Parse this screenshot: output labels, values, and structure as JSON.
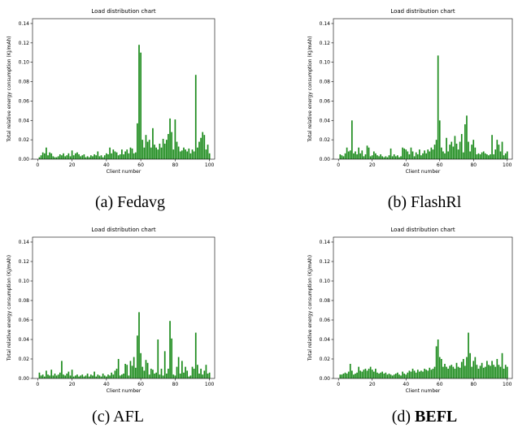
{
  "colors": {
    "bar": "#1a8a1a",
    "axis": "#000000"
  },
  "captions": [
    {
      "label": "(a)",
      "name": "Fedavg",
      "bold": false
    },
    {
      "label": "(b)",
      "name": "FlashRl",
      "bold": false
    },
    {
      "label": "(c)",
      "name": "AFL",
      "bold": false
    },
    {
      "label": "(d)",
      "name": "BEFL",
      "bold": true
    }
  ],
  "chart_data": [
    {
      "type": "bar",
      "title": "Load distribution chart",
      "xlabel": "Client number",
      "ylabel": "Total relative energy consumption (KJ/mAh)",
      "xlim": [
        -3,
        103
      ],
      "ylim": [
        0,
        0.145
      ],
      "xticks": [
        0,
        20,
        40,
        60,
        80,
        100
      ],
      "yticks": [
        0.0,
        0.02,
        0.04,
        0.06,
        0.08,
        0.1,
        0.12,
        0.14
      ],
      "x_start": 1,
      "values": [
        0.002,
        0.004,
        0.007,
        0.006,
        0.012,
        0.004,
        0.007,
        0.006,
        0.003,
        0.002,
        0.002,
        0.003,
        0.005,
        0.004,
        0.006,
        0.003,
        0.004,
        0.006,
        0.003,
        0.009,
        0.004,
        0.006,
        0.007,
        0.005,
        0.003,
        0.004,
        0.005,
        0.002,
        0.003,
        0.002,
        0.004,
        0.003,
        0.005,
        0.004,
        0.008,
        0.003,
        0.004,
        0.002,
        0.004,
        0.006,
        0.005,
        0.012,
        0.006,
        0.01,
        0.008,
        0.007,
        0.004,
        0.005,
        0.01,
        0.005,
        0.008,
        0.01,
        0.006,
        0.012,
        0.011,
        0.006,
        0.007,
        0.037,
        0.118,
        0.11,
        0.02,
        0.012,
        0.025,
        0.018,
        0.02,
        0.012,
        0.032,
        0.015,
        0.012,
        0.01,
        0.016,
        0.012,
        0.021,
        0.016,
        0.02,
        0.026,
        0.042,
        0.028,
        0.01,
        0.041,
        0.018,
        0.013,
        0.008,
        0.009,
        0.012,
        0.01,
        0.008,
        0.011,
        0.006,
        0.01,
        0.008,
        0.087,
        0.012,
        0.018,
        0.022,
        0.028,
        0.025,
        0.01,
        0.015,
        0.006
      ]
    },
    {
      "type": "bar",
      "title": "Load distribution chart",
      "xlabel": "Client number",
      "ylabel": "Total relative energy consumption (KJ/mAh)",
      "xlim": [
        -3,
        103
      ],
      "ylim": [
        0,
        0.145
      ],
      "xticks": [
        0,
        20,
        40,
        60,
        80,
        100
      ],
      "yticks": [
        0.0,
        0.02,
        0.04,
        0.06,
        0.08,
        0.1,
        0.12,
        0.14
      ],
      "x_start": 1,
      "values": [
        0.005,
        0.004,
        0.003,
        0.006,
        0.012,
        0.008,
        0.009,
        0.04,
        0.006,
        0.008,
        0.005,
        0.012,
        0.006,
        0.009,
        0.003,
        0.005,
        0.014,
        0.012,
        0.003,
        0.004,
        0.008,
        0.006,
        0.004,
        0.003,
        0.005,
        0.003,
        0.002,
        0.003,
        0.002,
        0.004,
        0.011,
        0.003,
        0.005,
        0.003,
        0.004,
        0.002,
        0.003,
        0.012,
        0.011,
        0.01,
        0.008,
        0.005,
        0.012,
        0.008,
        0.003,
        0.007,
        0.005,
        0.01,
        0.004,
        0.006,
        0.009,
        0.006,
        0.01,
        0.008,
        0.012,
        0.01,
        0.015,
        0.02,
        0.107,
        0.04,
        0.012,
        0.008,
        0.006,
        0.022,
        0.008,
        0.015,
        0.018,
        0.013,
        0.024,
        0.016,
        0.01,
        0.018,
        0.026,
        0.007,
        0.036,
        0.045,
        0.018,
        0.008,
        0.015,
        0.02,
        0.012,
        0.005,
        0.006,
        0.005,
        0.007,
        0.008,
        0.006,
        0.005,
        0.004,
        0.005,
        0.025,
        0.005,
        0.01,
        0.02,
        0.015,
        0.008,
        0.018,
        0.004,
        0.006,
        0.008
      ]
    },
    {
      "type": "bar",
      "title": "Load distribution chart",
      "xlabel": "Client number",
      "ylabel": "Total relative energy consumption (KJ/mAh)",
      "xlim": [
        -3,
        103
      ],
      "ylim": [
        0,
        0.145
      ],
      "xticks": [
        0,
        20,
        40,
        60,
        80,
        100
      ],
      "yticks": [
        0.0,
        0.02,
        0.04,
        0.06,
        0.08,
        0.1,
        0.12,
        0.14
      ],
      "x_start": 1,
      "values": [
        0.006,
        0.003,
        0.004,
        0.002,
        0.008,
        0.004,
        0.003,
        0.009,
        0.003,
        0.005,
        0.003,
        0.004,
        0.006,
        0.018,
        0.004,
        0.003,
        0.005,
        0.007,
        0.003,
        0.009,
        0.002,
        0.003,
        0.004,
        0.002,
        0.003,
        0.004,
        0.002,
        0.003,
        0.005,
        0.002,
        0.004,
        0.003,
        0.007,
        0.002,
        0.004,
        0.003,
        0.002,
        0.005,
        0.003,
        0.002,
        0.004,
        0.003,
        0.006,
        0.004,
        0.008,
        0.01,
        0.02,
        0.003,
        0.004,
        0.005,
        0.015,
        0.014,
        0.003,
        0.018,
        0.013,
        0.022,
        0.011,
        0.044,
        0.068,
        0.026,
        0.012,
        0.008,
        0.019,
        0.016,
        0.004,
        0.01,
        0.009,
        0.005,
        0.006,
        0.04,
        0.004,
        0.01,
        0.003,
        0.028,
        0.005,
        0.01,
        0.059,
        0.041,
        0.004,
        0.003,
        0.012,
        0.022,
        0.005,
        0.018,
        0.006,
        0.012,
        0.008,
        0.002,
        0.003,
        0.012,
        0.01,
        0.047,
        0.014,
        0.005,
        0.01,
        0.004,
        0.008,
        0.014,
        0.005,
        0.006
      ]
    },
    {
      "type": "bar",
      "title": "Load distribution chart",
      "xlabel": "Client number",
      "ylabel": "Total relative energy consumption (KJ/mAh)",
      "xlim": [
        -3,
        103
      ],
      "ylim": [
        0,
        0.145
      ],
      "xticks": [
        0,
        20,
        40,
        60,
        80,
        100
      ],
      "yticks": [
        0.0,
        0.02,
        0.04,
        0.06,
        0.08,
        0.1,
        0.12,
        0.14
      ],
      "x_start": 1,
      "values": [
        0.004,
        0.004,
        0.005,
        0.006,
        0.005,
        0.007,
        0.015,
        0.008,
        0.004,
        0.005,
        0.006,
        0.012,
        0.008,
        0.007,
        0.009,
        0.01,
        0.008,
        0.01,
        0.012,
        0.009,
        0.007,
        0.01,
        0.006,
        0.005,
        0.006,
        0.007,
        0.005,
        0.006,
        0.004,
        0.005,
        0.004,
        0.003,
        0.004,
        0.005,
        0.006,
        0.004,
        0.003,
        0.007,
        0.005,
        0.004,
        0.006,
        0.008,
        0.007,
        0.01,
        0.008,
        0.006,
        0.009,
        0.007,
        0.008,
        0.007,
        0.01,
        0.009,
        0.008,
        0.011,
        0.009,
        0.01,
        0.012,
        0.033,
        0.04,
        0.022,
        0.02,
        0.012,
        0.015,
        0.012,
        0.01,
        0.013,
        0.014,
        0.012,
        0.01,
        0.016,
        0.012,
        0.011,
        0.017,
        0.02,
        0.013,
        0.022,
        0.047,
        0.026,
        0.012,
        0.018,
        0.022,
        0.014,
        0.01,
        0.013,
        0.016,
        0.011,
        0.012,
        0.018,
        0.014,
        0.013,
        0.018,
        0.014,
        0.012,
        0.02,
        0.014,
        0.012,
        0.026,
        0.01,
        0.014,
        0.012
      ]
    }
  ]
}
